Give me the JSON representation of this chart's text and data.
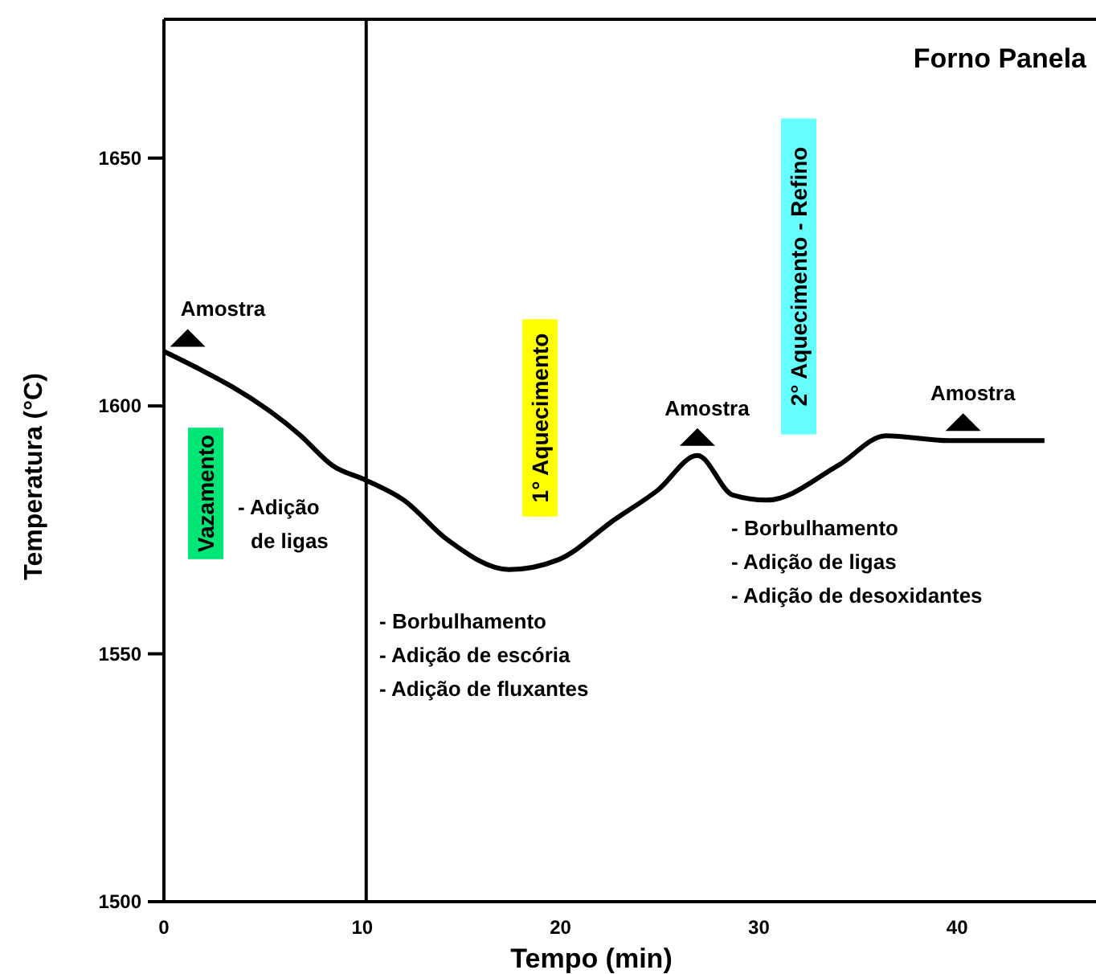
{
  "chart_data": {
    "type": "line",
    "title": "Forno Panela",
    "xlabel": "Tempo (min)",
    "ylabel": "Temperatura (°C)",
    "x": [
      0,
      6.9,
      8.5,
      10.2,
      12.1,
      14.3,
      17.4,
      19.9,
      22.7,
      24.9,
      26.9,
      28.7,
      30.4,
      34,
      36.4,
      39.6,
      44.4
    ],
    "series": [
      {
        "color": "#000000",
        "values": [
          1611,
          1594,
          1588,
          1585,
          1581,
          1573,
          1567,
          1569,
          1577,
          1583,
          1590,
          1582,
          1581,
          1588,
          1594,
          1593,
          1593
        ]
      }
    ],
    "xlim": [
      0,
      47
    ],
    "ylim": [
      1500,
      1678
    ],
    "xticks": [
      0,
      10,
      20,
      30,
      40
    ],
    "yticks": [
      1500,
      1550,
      1600,
      1650
    ],
    "grid": false,
    "marker": "none",
    "line_style": "solid",
    "ref_lines": [
      {
        "axis": "x",
        "value": 10.2,
        "color": "#000000"
      }
    ],
    "annotations": [
      {
        "text": "Amostra",
        "x": 1.2,
        "y": 1610
      },
      {
        "text": "Amostra",
        "x": 26.9,
        "y": 1590
      },
      {
        "text": "Amostra",
        "x": 40.3,
        "y": 1593
      },
      "Vazamento",
      "1° Aquecimento",
      "2° Aquecimento - Refino",
      "- Adição\nde ligas",
      "- Borbulhamento\n- Adição de escória\n- Adição de fluxantes",
      "- Borbulhamento\n- Adição de ligas\n- Adição de desoxidantes"
    ]
  }
}
